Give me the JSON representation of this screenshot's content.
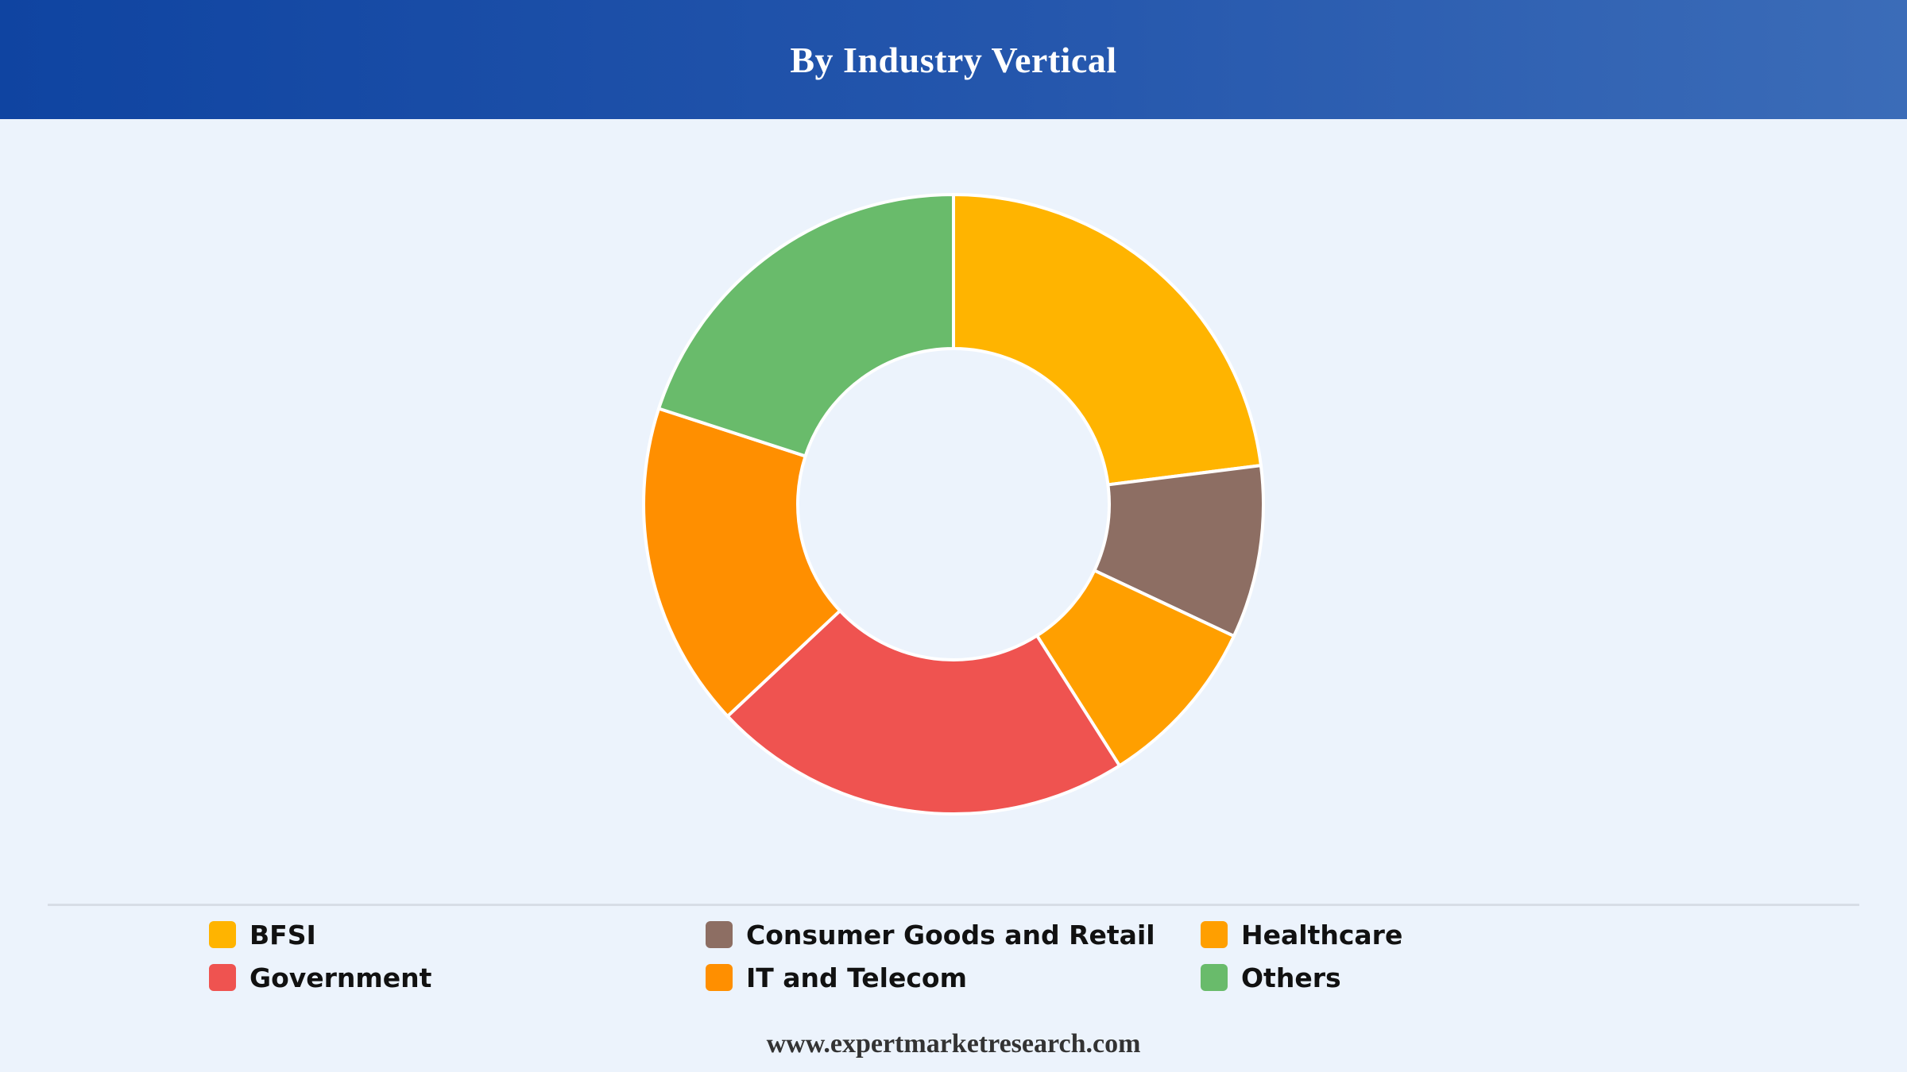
{
  "header": {
    "title": "By Industry Vertical"
  },
  "chart_data": {
    "type": "pie",
    "variant": "donut",
    "title": "By Industry Vertical",
    "categories": [
      "BFSI",
      "Consumer Goods and Retail",
      "Healthcare",
      "Government",
      "IT and Telecom",
      "Others"
    ],
    "values": [
      23,
      9,
      9,
      22,
      17,
      20
    ],
    "colors": [
      "#ffb400",
      "#8d6e63",
      "#ff9f00",
      "#ef5350",
      "#ff8f00",
      "#69bb6b"
    ],
    "slice_order": [
      "BFSI",
      "Consumer Goods and Retail",
      "Healthcare",
      "Government",
      "IT and Telecom",
      "Others"
    ],
    "start_angle": "top",
    "direction": "clockwise",
    "legend_placement": "bottom"
  },
  "legend": {
    "items": [
      {
        "label": "BFSI",
        "color": "#ffb400"
      },
      {
        "label": "Consumer Goods and Retail",
        "color": "#8d6e63"
      },
      {
        "label": "Healthcare",
        "color": "#ff9f00"
      },
      {
        "label": "Government",
        "color": "#ef5350"
      },
      {
        "label": "IT and Telecom",
        "color": "#ff8f00"
      },
      {
        "label": "Others",
        "color": "#69bb6b"
      }
    ]
  },
  "footer": {
    "source": "www.expertmarketresearch.com"
  }
}
